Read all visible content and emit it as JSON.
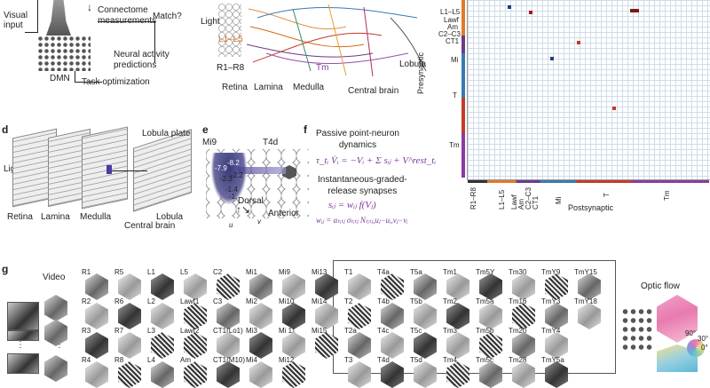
{
  "panel_a": {
    "visual_input": "Visual\ninput",
    "connectome": "Connectome\nmeasurements",
    "match": "Match?",
    "neural_activity": "Neural activity\npredictions",
    "dmn": "DMN",
    "task_opt": "Task optimization"
  },
  "panel_b": {
    "light": "Light",
    "l1l5": "L1–L5",
    "r1r8": "R1–R8",
    "tm": "Tm",
    "lobula": "Lobula",
    "retina": "Retina",
    "lamina": "Lamina",
    "medulla": "Medulla",
    "central_brain": "Central brain"
  },
  "panel_c": {
    "row_labels": [
      "L1–L5",
      "Lawf",
      "Am",
      "C2–C3",
      "CT1",
      "Mi",
      "T",
      "Tm"
    ],
    "col_labels": [
      "R1–R8",
      "L1–L5",
      "Lawf",
      "Am",
      "C2–C3",
      "CT1",
      "Mi",
      "T",
      "Tm"
    ],
    "presynaptic": "Presynaptic",
    "postsynaptic": "Postsynaptic"
  },
  "panel_d": {
    "letter": "d",
    "light": "Light",
    "lobula_plate": "Lobula plate",
    "retina": "Retina",
    "lamina": "Lamina",
    "medulla": "Medulla",
    "lobula": "Lobula",
    "central_brain": "Central brain"
  },
  "panel_e": {
    "letter": "e",
    "mi9": "Mi9",
    "t4d": "T4d",
    "dorsal": "Dorsal",
    "anterior": "Anterior",
    "u": "u",
    "v": "v",
    "values": [
      "-7.9",
      "-8.2",
      "-2.3",
      "-2.2",
      "-1.4",
      "-1."
    ]
  },
  "panel_f": {
    "letter": "f",
    "title": "Passive point-neuron\ndynamics",
    "eq1": "τ_tᵢ V̇ᵢ = −Vᵢ + Σ sᵢⱼ + V^rest_tᵢ",
    "subtitle": "Instantaneous-graded-\nrelease synapses",
    "eq2": "sᵢⱼ = wᵢⱼ f(Vⱼ)",
    "eq3": "wᵢⱼ = αₜᵢₜⱼ σₜᵢₜⱼ Nₜᵢₜⱼ,uⱼ−uᵢ,vⱼ−vᵢ"
  },
  "panel_g": {
    "letter": "g",
    "video": "Video",
    "optic_flow": "Optic flow",
    "deg90": "90°",
    "deg30": "30°",
    "deg0": "0°",
    "ellipsis": "⋮",
    "columns": [
      [
        "R1",
        "R2",
        "R3",
        "R4"
      ],
      [
        "R5",
        "R6",
        "R7",
        "R8"
      ],
      [
        "L1",
        "L2",
        "L3",
        "L4"
      ],
      [
        "L5",
        "Lawf1",
        "Lawf2",
        "Am"
      ],
      [
        "C2",
        "C3",
        "CT1(Lo1)",
        "CT1(M10)"
      ],
      [
        "Mi1",
        "Mi2",
        "Mi3",
        "Mi4"
      ],
      [
        "Mi9",
        "Mi10",
        "Mi 11",
        "Mi12"
      ],
      [
        "Mi13",
        "Mi14",
        "Mi15",
        ""
      ],
      [
        "T1",
        "T2",
        "T2a",
        "T3"
      ],
      [
        "T4a",
        "T4b",
        "T4c",
        "T4d"
      ],
      [
        "T5a",
        "T5b",
        "T5c",
        "T5d"
      ],
      [
        "Tm1",
        "Tm2",
        "Tm3",
        "Tm4"
      ],
      [
        "Tm5Y",
        "Tm5a",
        "Tm5b",
        "Tm5c"
      ],
      [
        "Tm30",
        "Tm16",
        "Tm20",
        "Tm28"
      ],
      [
        "TmY9",
        "TmY3",
        "TmY4",
        "TmY5a"
      ],
      [
        "TmY15",
        "TmY18",
        "",
        ""
      ]
    ]
  }
}
